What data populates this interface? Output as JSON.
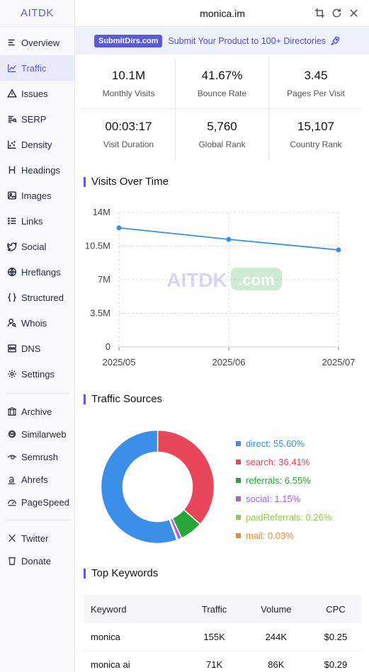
{
  "brand": "AITDK",
  "header": {
    "domain": "monica.im"
  },
  "banner": {
    "badge": "SubmitDirs.com",
    "text": "Submit Your Product to 100+ Directories"
  },
  "sidebar": {
    "items": [
      {
        "label": "Overview",
        "icon": "list-icon"
      },
      {
        "label": "Traffic",
        "icon": "chart-line-icon",
        "active": true
      },
      {
        "label": "Issues",
        "icon": "warning-icon"
      },
      {
        "label": "SERP",
        "icon": "serp-icon"
      },
      {
        "label": "Density",
        "icon": "density-icon"
      },
      {
        "label": "Headings",
        "icon": "heading-icon"
      },
      {
        "label": "Images",
        "icon": "image-icon"
      },
      {
        "label": "Links",
        "icon": "link-list-icon"
      },
      {
        "label": "Social",
        "icon": "twitter-bird-icon"
      },
      {
        "label": "Hreflangs",
        "icon": "globe-icon"
      },
      {
        "label": "Structured",
        "icon": "braces-icon"
      },
      {
        "label": "Whois",
        "icon": "user-search-icon"
      },
      {
        "label": "DNS",
        "icon": "server-icon"
      },
      {
        "label": "Settings",
        "icon": "gear-icon"
      }
    ],
    "external": [
      {
        "label": "Archive",
        "icon": "archive-icon"
      },
      {
        "label": "Similarweb",
        "icon": "similarweb-icon"
      },
      {
        "label": "Semrush",
        "icon": "semrush-icon"
      },
      {
        "label": "Ahrefs",
        "icon": "ahrefs-icon"
      },
      {
        "label": "PageSpeed",
        "icon": "pagespeed-icon"
      }
    ],
    "footer": [
      {
        "label": "Twitter",
        "icon": "x-icon"
      },
      {
        "label": "Donate",
        "icon": "cup-icon"
      }
    ]
  },
  "stats": [
    {
      "value": "10.1M",
      "label": "Monthly Visits"
    },
    {
      "value": "41.67%",
      "label": "Bounce Rate"
    },
    {
      "value": "3.45",
      "label": "Pages Per Visit"
    },
    {
      "value": "00:03:17",
      "label": "Visit Duration"
    },
    {
      "value": "5,760",
      "label": "Global Rank"
    },
    {
      "value": "15,107",
      "label": "Country Rank"
    }
  ],
  "sections": {
    "visits": "Visits Over Time",
    "sources": "Traffic Sources",
    "keywords": "Top Keywords"
  },
  "watermark": {
    "left": "AITDK",
    "right": ".com"
  },
  "chart_data": [
    {
      "type": "line",
      "title": "Visits Over Time",
      "categories": [
        "2025/05",
        "2025/06",
        "2025/07"
      ],
      "values": [
        12400000,
        11200000,
        10100000
      ],
      "ylim": [
        0,
        14000000
      ],
      "yticks": [
        0,
        3500000,
        7000000,
        10500000,
        14000000
      ],
      "ytick_labels": [
        "0",
        "3.5M",
        "7M",
        "10.5M",
        "14M"
      ],
      "grid": true,
      "color": "#3b8fe6"
    },
    {
      "type": "pie",
      "title": "Traffic Sources",
      "donut": true,
      "slices": [
        {
          "name": "direct",
          "value": 55.6,
          "label": "direct: 55.60%",
          "color": "#3b8fe6"
        },
        {
          "name": "search",
          "value": 36.41,
          "label": "search: 36.41%",
          "color": "#e8475a"
        },
        {
          "name": "referrals",
          "value": 6.55,
          "label": "referrals: 6.55%",
          "color": "#27a53a"
        },
        {
          "name": "social",
          "value": 1.15,
          "label": "social: 1.15%",
          "color": "#a561e8"
        },
        {
          "name": "paidReferrals",
          "value": 0.26,
          "label": "paidReferrals: 0.26%",
          "color": "#8fcd4a"
        },
        {
          "name": "mail",
          "value": 0.03,
          "label": "mail: 0.03%",
          "color": "#ef8a3a"
        }
      ],
      "legend": "right"
    },
    {
      "type": "table",
      "title": "Top Keywords",
      "columns": [
        "Keyword",
        "Traffic",
        "Volume",
        "CPC"
      ],
      "rows": [
        [
          "monica",
          "155K",
          "244K",
          "$0.25"
        ],
        [
          "monica ai",
          "71K",
          "86K",
          "$0.29"
        ]
      ]
    }
  ]
}
